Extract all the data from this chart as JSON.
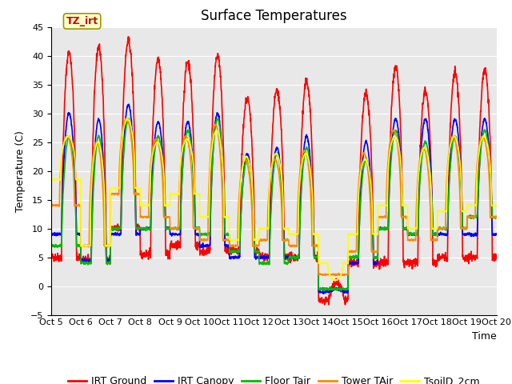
{
  "title": "Surface Temperatures",
  "xlabel": "Time",
  "ylabel": "Temperature (C)",
  "ylim": [
    -5,
    45
  ],
  "xlim": [
    0,
    15
  ],
  "x_tick_labels": [
    "Oct 5",
    "Oct 6",
    "Oct 7",
    "Oct 8",
    "Oct 9",
    "Oct 10",
    "Oct 11",
    "Oct 12",
    "Oct 13",
    "Oct 14",
    "Oct 15",
    "Oct 16",
    "Oct 17",
    "Oct 18",
    "Oct 19",
    "Oct 20"
  ],
  "annotation_text": "TZ_irt",
  "annotation_color": "#cc0000",
  "annotation_bg": "#ffffcc",
  "annotation_border": "#999900",
  "bg_color": "#e8e8e8",
  "series": [
    {
      "label": "IRT Ground",
      "color": "#ff0000"
    },
    {
      "label": "IRT Canopy",
      "color": "#0000ff"
    },
    {
      "label": "Floor Tair",
      "color": "#00bb00"
    },
    {
      "label": "Tower TAir",
      "color": "#ff8800"
    },
    {
      "label": "TsoilD_2cm",
      "color": "#ffff00"
    }
  ],
  "title_fontsize": 12,
  "axis_fontsize": 9,
  "tick_fontsize": 8,
  "legend_fontsize": 9,
  "n_days": 15
}
